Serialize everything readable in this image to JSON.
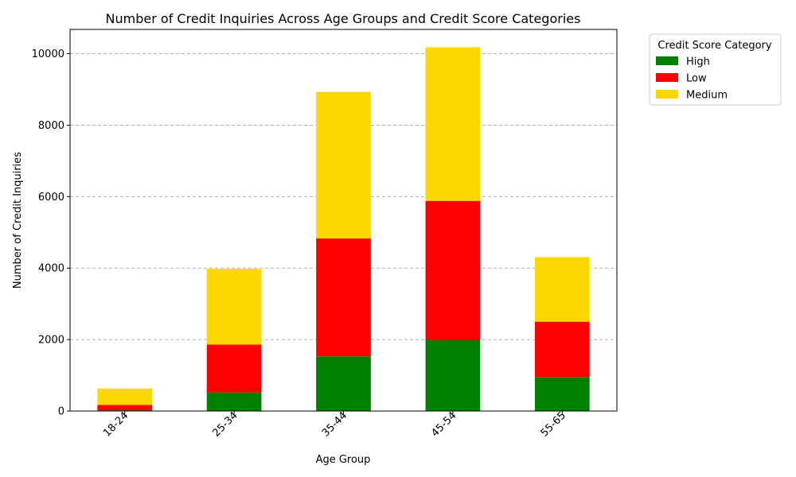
{
  "chart_data": {
    "type": "bar",
    "stacked": true,
    "title": "Number of Credit Inquiries Across Age Groups and Credit Score Categories",
    "xlabel": "Age Group",
    "ylabel": "Number of Credit Inquiries",
    "categories": [
      "18-24",
      "25-34",
      "35-44",
      "45-54",
      "55-65"
    ],
    "series": [
      {
        "name": "High",
        "color": "#008000",
        "values": [
          20,
          520,
          1530,
          1980,
          950
        ]
      },
      {
        "name": "Low",
        "color": "#ff0000",
        "values": [
          150,
          1340,
          3300,
          3900,
          1550
        ]
      },
      {
        "name": "Medium",
        "color": "#ffd700",
        "values": [
          460,
          2120,
          4100,
          4300,
          1810
        ]
      }
    ],
    "ylim": [
      0,
      10680
    ],
    "yticks": [
      0,
      2000,
      4000,
      6000,
      8000,
      10000
    ],
    "grid": "y-dashed",
    "legend_title": "Credit Score Category",
    "legend_position": "outside-top-right"
  }
}
